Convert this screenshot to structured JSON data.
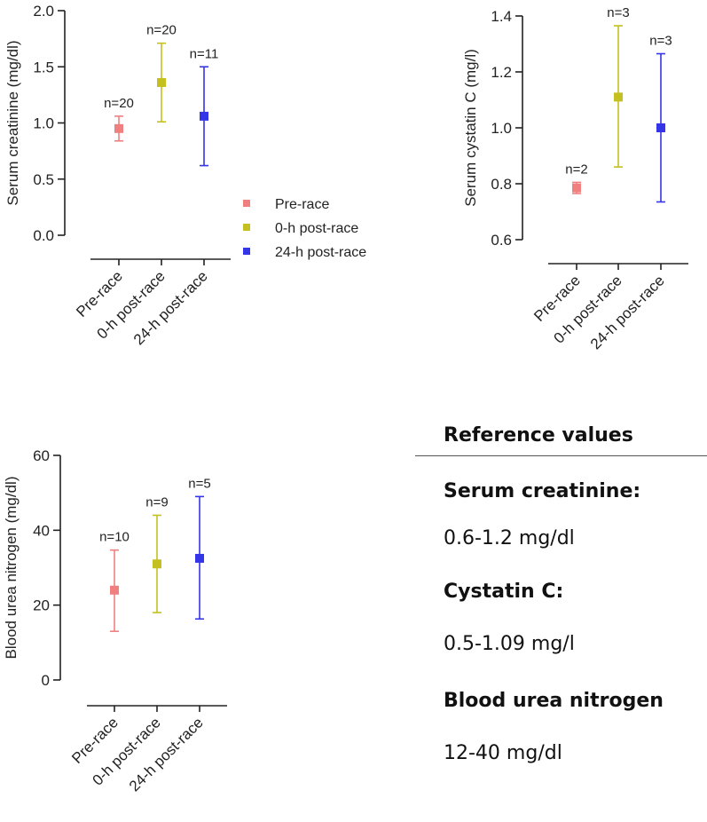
{
  "colors": {
    "pre": "#f08080",
    "post0": "#c4c020",
    "post24": "#3535e8",
    "axis": "#222222"
  },
  "chart_data": [
    {
      "type": "errorbar",
      "ylabel": "Serum creatinine (mg/dl)",
      "ylim": [
        0,
        2.0
      ],
      "yticks": [
        "0.0",
        "0.5",
        "1.0",
        "1.5",
        "2.0"
      ],
      "ytick_values": [
        0,
        0.5,
        1.0,
        1.5,
        2.0
      ],
      "categories": [
        "Pre-race",
        "0-h post-race",
        "24-h post-race"
      ],
      "series": [
        {
          "name": "Pre-race",
          "color_key": "pre",
          "value": 0.95,
          "low": 0.84,
          "high": 1.06,
          "n_label": "n=20"
        },
        {
          "name": "0-h post-race",
          "color_key": "post0",
          "value": 1.36,
          "low": 1.01,
          "high": 1.71,
          "n_label": "n=20"
        },
        {
          "name": "24-h post-race",
          "color_key": "post24",
          "value": 1.06,
          "low": 0.62,
          "high": 1.5,
          "n_label": "n=11"
        }
      ],
      "legend": [
        "Pre-race",
        "0-h post-race",
        "24-h post-race"
      ],
      "legend_position": "right"
    },
    {
      "type": "errorbar",
      "ylabel": "Serum cystatin C (mg/l)",
      "ylim": [
        0.6,
        1.4
      ],
      "yticks": [
        "0.6",
        "0.8",
        "1.0",
        "1.2",
        "1.4"
      ],
      "ytick_values": [
        0.6,
        0.8,
        1.0,
        1.2,
        1.4
      ],
      "categories": [
        "Pre-race",
        "0-h post-race",
        "24-h post-race"
      ],
      "series": [
        {
          "name": "Pre-race",
          "color_key": "pre",
          "value": 0.785,
          "low": 0.765,
          "high": 0.805,
          "n_label": "n=2"
        },
        {
          "name": "0-h post-race",
          "color_key": "post0",
          "value": 1.11,
          "low": 0.86,
          "high": 1.365,
          "n_label": "n=3"
        },
        {
          "name": "24-h post-race",
          "color_key": "post24",
          "value": 1.0,
          "low": 0.735,
          "high": 1.265,
          "n_label": "n=3"
        }
      ]
    },
    {
      "type": "errorbar",
      "ylabel": "Blood urea nitrogen (mg/dl)",
      "ylim": [
        0,
        60
      ],
      "yticks": [
        "0",
        "20",
        "40",
        "60"
      ],
      "ytick_values": [
        0,
        20,
        40,
        60
      ],
      "categories": [
        "Pre-race",
        "0-h post-race",
        "24-h post-race"
      ],
      "series": [
        {
          "name": "Pre-race",
          "color_key": "pre",
          "value": 24,
          "low": 13,
          "high": 34.7,
          "n_label": "n=10"
        },
        {
          "name": "0-h post-race",
          "color_key": "post0",
          "value": 31,
          "low": 18,
          "high": 44,
          "n_label": "n=9"
        },
        {
          "name": "24-h post-race",
          "color_key": "post24",
          "value": 32.5,
          "low": 16.3,
          "high": 49,
          "n_label": "n=5"
        }
      ]
    }
  ],
  "reference": {
    "title": "Reference values",
    "creatinine_label": "Serum creatinine:",
    "creatinine_value": "0.6-1.2 mg/dl",
    "cystatin_label": "Cystatin C:",
    "cystatin_value": "0.5-1.09 mg/l",
    "bun_label": "Blood urea nitrogen",
    "bun_value": "12-40 mg/dl"
  }
}
